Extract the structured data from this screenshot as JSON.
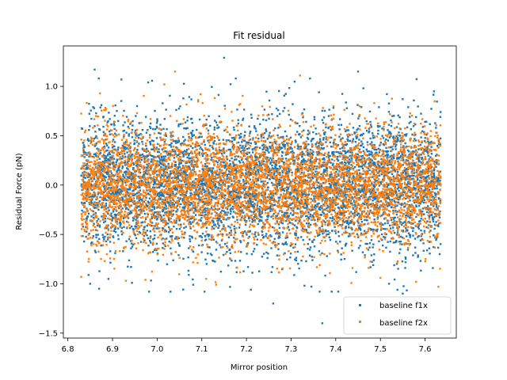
{
  "chart_data": {
    "type": "scatter",
    "title": "Fit residual",
    "xlabel": "Mirror position",
    "ylabel": "Residual Force (pN)",
    "xlim": [
      6.79,
      7.67
    ],
    "ylim": [
      -1.55,
      1.41
    ],
    "xticks": [
      6.8,
      6.9,
      7.0,
      7.1,
      7.2,
      7.3,
      7.4,
      7.5,
      7.6
    ],
    "xtick_labels": [
      "6.8",
      "6.9",
      "7.0",
      "7.1",
      "7.2",
      "7.3",
      "7.4",
      "7.5",
      "7.6"
    ],
    "yticks": [
      -1.5,
      -1.0,
      -0.5,
      0.0,
      0.5,
      1.0
    ],
    "ytick_labels": [
      "−1.5",
      "−1.0",
      "−0.5",
      "0.0",
      "0.5",
      "1.0"
    ],
    "grid": false,
    "legend_position": "lower-right",
    "series": [
      {
        "name": "baseline f1x",
        "color": "#1f77b4",
        "x_range": [
          6.83,
          7.635
        ],
        "note_sd": 0.33,
        "x": [
          6.86,
          6.92,
          6.98,
          7.15,
          7.26,
          7.37,
          7.45,
          7.55,
          6.87,
          7.03,
          7.33,
          7.21,
          6.85,
          7.62
        ],
        "y": [
          1.17,
          1.07,
          1.04,
          1.29,
          -1.2,
          -1.4,
          1.15,
          -1.1,
          -1.05,
          -1.08,
          -1.02,
          -1.06,
          -1.0,
          0.95
        ]
      },
      {
        "name": "baseline f2x",
        "color": "#ff7f0e",
        "x_range": [
          6.83,
          7.635
        ],
        "note_sd": 0.3,
        "x": [
          6.83,
          7.04,
          7.32,
          7.63,
          6.93,
          7.11,
          7.5,
          7.58
        ],
        "y": [
          -0.93,
          1.15,
          1.11,
          -1.03,
          -0.97,
          -0.95,
          -0.94,
          -0.98
        ]
      }
    ]
  }
}
